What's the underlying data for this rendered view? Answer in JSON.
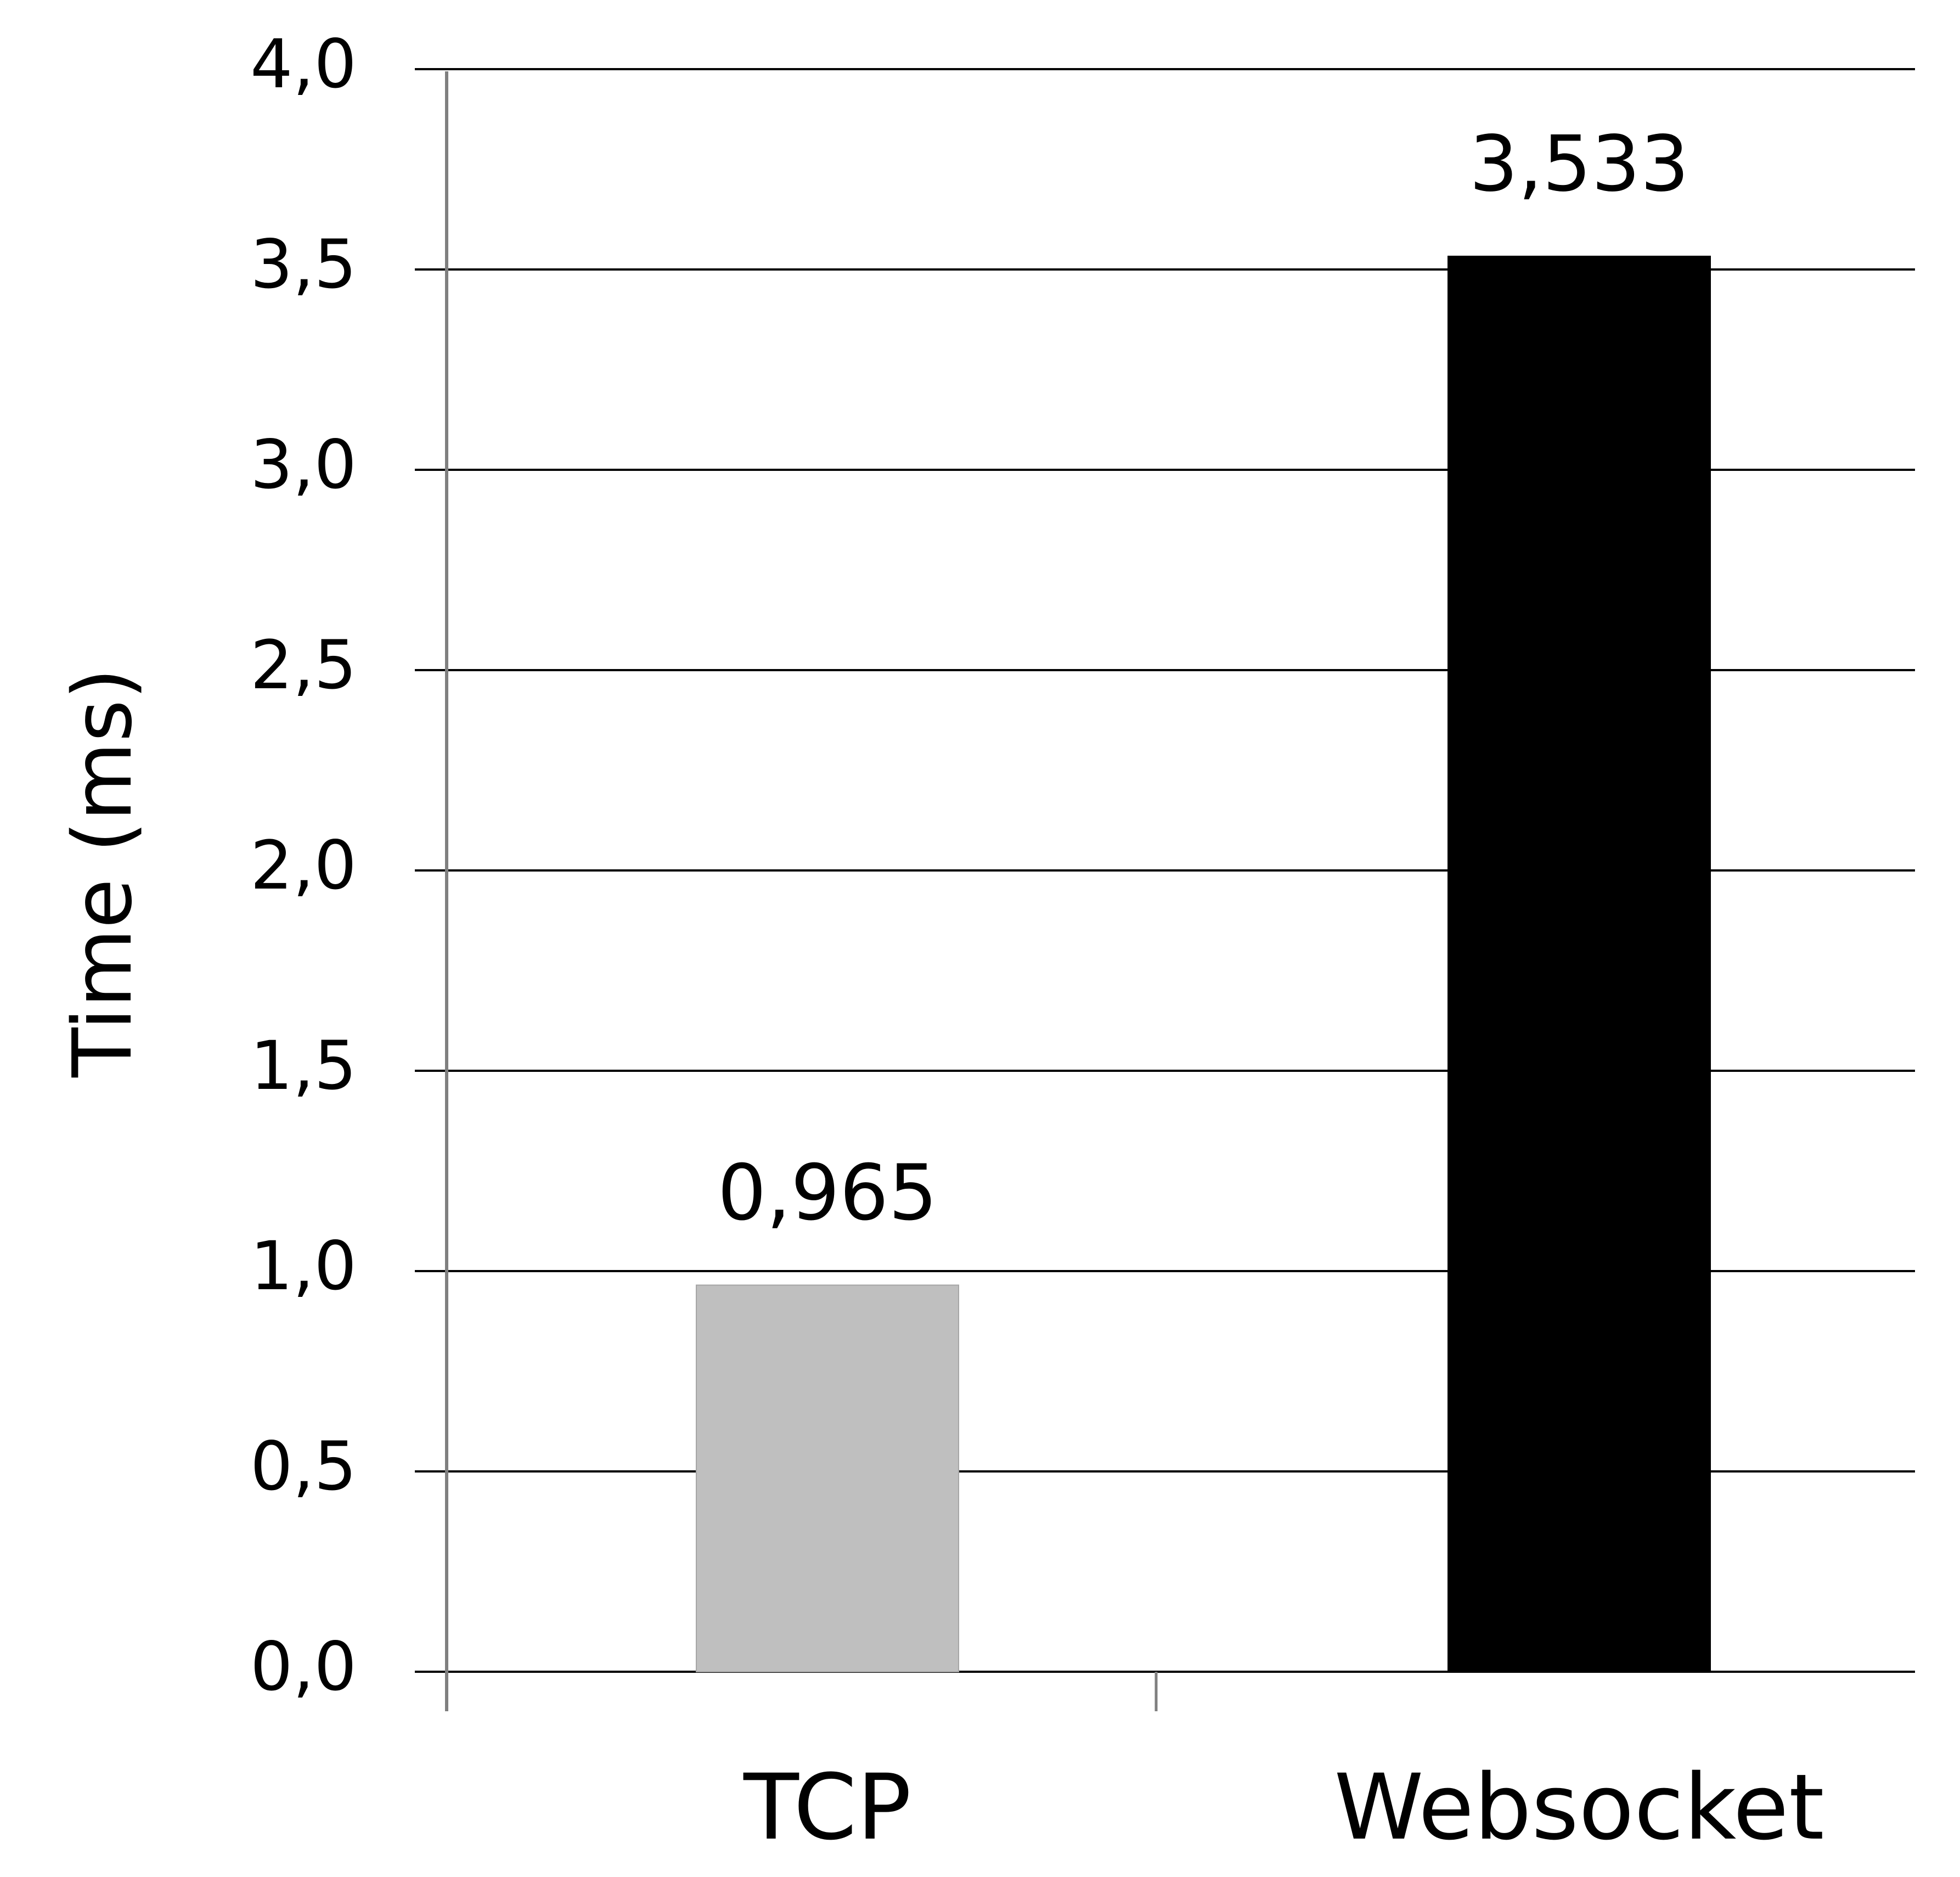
{
  "chart_data": {
    "type": "bar",
    "categories": [
      "TCP",
      "Websocket"
    ],
    "values": [
      0.965,
      3.533
    ],
    "value_labels": [
      "0,965",
      "3,533"
    ],
    "bar_colors": [
      "#bfbfbf",
      "#000000"
    ],
    "title": "",
    "xlabel": "",
    "ylabel": "Time (ms)",
    "ylim": [
      0,
      4.0
    ],
    "yticks": [
      0.0,
      0.5,
      1.0,
      1.5,
      2.0,
      2.5,
      3.0,
      3.5,
      4.0
    ],
    "ytick_labels": [
      "0,0",
      "0,5",
      "1,0",
      "1,5",
      "2,0",
      "2,5",
      "3,0",
      "3,5",
      "4,0"
    ],
    "grid": "horizontal",
    "legend": "none"
  }
}
